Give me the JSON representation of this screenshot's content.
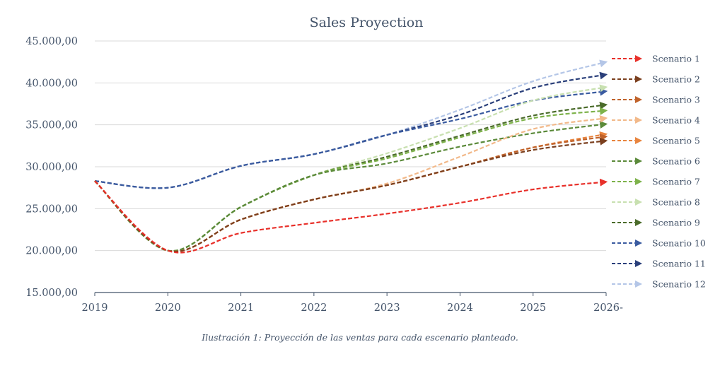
{
  "caption": "Ilustración 1: Proyección de las ventas para cada escenario planteado.",
  "chart_data": {
    "type": "line",
    "title": "Sales Proyection",
    "xlabel": "",
    "ylabel": "",
    "x": [
      "2019",
      "2020",
      "2021",
      "2022",
      "2023",
      "2024",
      "2025",
      "2026-"
    ],
    "ylim": [
      15000,
      45000
    ],
    "yticks": [
      15000,
      20000,
      25000,
      30000,
      35000,
      40000,
      45000
    ],
    "ytick_labels": [
      "15.000,00",
      "20.000,00",
      "25.000,00",
      "30.000,00",
      "35.000,00",
      "40.000,00",
      "45.000,00"
    ],
    "grid": true,
    "legend_position": "right",
    "line_style": "dashed with arrow end",
    "series": [
      {
        "name": "Scenario 1",
        "color": "#E8302A",
        "values": [
          28300,
          20000,
          22100,
          23300,
          24400,
          25700,
          27300,
          28200
        ]
      },
      {
        "name": "Scenario 2",
        "color": "#7B3F1E",
        "values": [
          28300,
          20000,
          23700,
          26100,
          27800,
          30000,
          32000,
          33100
        ]
      },
      {
        "name": "Scenario 3",
        "color": "#C0622A",
        "values": [
          28300,
          20000,
          23700,
          26100,
          27800,
          30000,
          32300,
          33600
        ]
      },
      {
        "name": "Scenario 4",
        "color": "#F2B98A",
        "values": [
          28300,
          20000,
          23700,
          26100,
          28000,
          31200,
          34500,
          35800
        ]
      },
      {
        "name": "Scenario 5",
        "color": "#E8843E",
        "values": [
          28300,
          20000,
          23700,
          26100,
          27800,
          30000,
          32300,
          33900
        ]
      },
      {
        "name": "Scenario 6",
        "color": "#5B8A3A",
        "values": [
          28300,
          20000,
          25200,
          29000,
          30400,
          32400,
          34000,
          35100
        ]
      },
      {
        "name": "Scenario 7",
        "color": "#7DB24A",
        "values": [
          28300,
          20000,
          25200,
          29000,
          31000,
          33500,
          35800,
          36700
        ]
      },
      {
        "name": "Scenario 8",
        "color": "#C8E0B0",
        "values": [
          28300,
          20000,
          25200,
          29000,
          31600,
          34600,
          37900,
          39500
        ]
      },
      {
        "name": "Scenario 9",
        "color": "#4A6B2A",
        "values": [
          28300,
          20000,
          25200,
          29000,
          31200,
          33700,
          36100,
          37400
        ]
      },
      {
        "name": "Scenario 10",
        "color": "#3A5BA0",
        "values": [
          28300,
          27500,
          30100,
          31500,
          33800,
          35700,
          37900,
          39000
        ]
      },
      {
        "name": "Scenario 11",
        "color": "#2A3F7A",
        "values": [
          28300,
          27500,
          30100,
          31500,
          33800,
          36200,
          39400,
          41000
        ]
      },
      {
        "name": "Scenario 12",
        "color": "#B4C6E7",
        "values": [
          28300,
          27500,
          30100,
          31500,
          33800,
          36800,
          40200,
          42500
        ]
      }
    ]
  }
}
